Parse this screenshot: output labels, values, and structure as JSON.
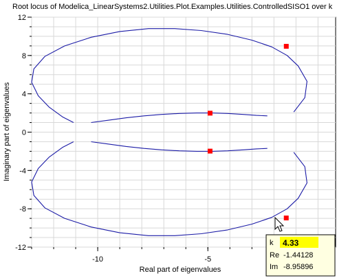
{
  "chart_data": {
    "type": "scatter",
    "title": "Root locus of Modelica_LinearSystems2.Utilities.Plot.Examples.Utilities.ControlledSISO1 over k",
    "xlabel": "Real part of eigenvalues",
    "ylabel": "Imaginary part of eigenvalues",
    "xlim": [
      -13,
      0.8
    ],
    "ylim": [
      -12,
      12
    ],
    "grid": true,
    "xticks": [
      -10,
      -5
    ],
    "xtick_labels": [
      "-10",
      "-5"
    ],
    "yticks": [
      -12,
      -8,
      -4,
      0,
      4,
      8,
      12
    ],
    "ytick_labels": [
      "-12",
      "-8",
      "-4",
      "0",
      "4",
      "8",
      "12"
    ],
    "line_color": "#1a1aa6",
    "marker_color": "#ff0000",
    "series": [
      {
        "x": [
          -11.1,
          -11.6,
          -12.2,
          -12.7,
          -13.0,
          -12.9,
          -12.4,
          -11.5,
          -10.3,
          -9.0,
          -7.7,
          -6.5,
          -5.3,
          -4.1,
          -3.0,
          -2.1,
          -1.4,
          -0.9,
          -0.5,
          -0.6,
          -1.1
        ],
        "y": [
          1.0,
          1.6,
          2.6,
          3.8,
          5.2,
          6.6,
          7.9,
          9.0,
          9.9,
          10.5,
          10.8,
          10.8,
          10.6,
          10.2,
          9.6,
          8.9,
          8.0,
          6.9,
          5.3,
          3.6,
          2.1
        ]
      },
      {
        "x": [
          -11.1,
          -11.6,
          -12.2,
          -12.7,
          -13.0,
          -12.9,
          -12.4,
          -11.5,
          -10.3,
          -9.0,
          -7.7,
          -6.5,
          -5.3,
          -4.1,
          -3.0,
          -2.1,
          -1.4,
          -0.9,
          -0.5,
          -0.6,
          -1.1
        ],
        "y": [
          -1.0,
          -1.6,
          -2.6,
          -3.8,
          -5.2,
          -6.6,
          -7.9,
          -9.0,
          -9.9,
          -10.5,
          -10.8,
          -10.8,
          -10.6,
          -10.2,
          -9.6,
          -8.9,
          -8.0,
          -6.9,
          -5.3,
          -3.6,
          -2.1
        ]
      },
      {
        "x": [
          -10.3,
          -9.5,
          -8.7,
          -7.9,
          -7.1,
          -6.3,
          -5.5,
          -4.8,
          -4.1,
          -3.4,
          -2.8,
          -2.3
        ],
        "y": [
          1.0,
          1.25,
          1.5,
          1.7,
          1.85,
          1.95,
          2.0,
          2.0,
          1.95,
          1.85,
          1.75,
          1.7
        ]
      },
      {
        "x": [
          -10.3,
          -9.5,
          -8.7,
          -7.9,
          -7.1,
          -6.3,
          -5.5,
          -4.8,
          -4.1,
          -3.4,
          -2.8,
          -2.3
        ],
        "y": [
          -1.0,
          -1.25,
          -1.5,
          -1.7,
          -1.85,
          -1.95,
          -2.0,
          -2.0,
          -1.95,
          -1.85,
          -1.75,
          -1.7
        ]
      }
    ],
    "markers": [
      {
        "x": -1.44,
        "y": 8.96
      },
      {
        "x": -4.9,
        "y": 1.98
      },
      {
        "x": -4.9,
        "y": -1.98
      },
      {
        "x": -1.44128,
        "y": -8.95896
      }
    ],
    "tooltip": {
      "k_label": "k",
      "k_value": "4.33",
      "re_label": "Re",
      "re_value": "-1.44128",
      "im_label": "Im",
      "im_value": "-8.95896",
      "k_highlight": "#ffff00"
    }
  }
}
